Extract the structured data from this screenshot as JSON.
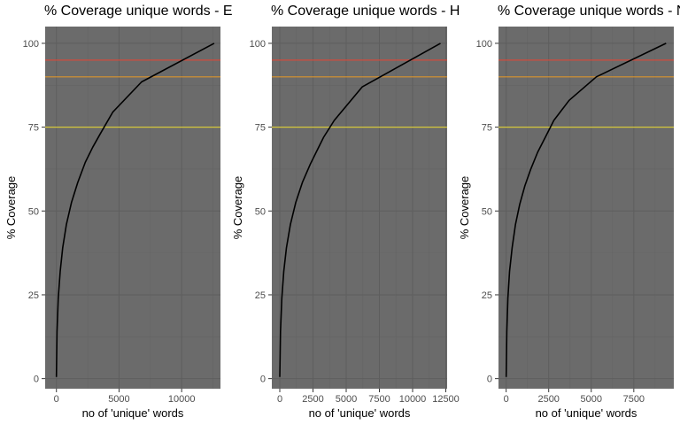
{
  "chart_data": [
    {
      "type": "line",
      "title": "% Coverage unique words - E",
      "xlabel": "no of 'unique' words",
      "ylabel": "% Coverage",
      "xlim": [
        -900,
        13100
      ],
      "ylim": [
        -3,
        105
      ],
      "x_ticks": [
        0,
        5000,
        10000
      ],
      "x_tick_labels": [
        "0",
        "5000",
        "10000"
      ],
      "y_ticks": [
        0,
        25,
        50,
        75,
        100
      ],
      "y_tick_labels": [
        "0",
        "25",
        "50",
        "75",
        "100"
      ],
      "background": "#6b6b6b",
      "grid": true,
      "series": [
        {
          "color": "#000000",
          "x": [
            1,
            50,
            150,
            300,
            500,
            800,
            1200,
            1700,
            2300,
            2900,
            3500,
            4500,
            6800,
            12600
          ],
          "y": [
            0.5,
            14,
            24,
            32,
            39,
            46,
            52.5,
            58.5,
            64.5,
            69,
            73,
            79.5,
            88.5,
            100
          ]
        }
      ],
      "hlines": [
        {
          "y": 95,
          "color": "#d24b3c"
        },
        {
          "y": 90,
          "color": "#d9932c"
        },
        {
          "y": 75,
          "color": "#d6c83c"
        }
      ]
    },
    {
      "type": "line",
      "title": "% Coverage unique words - H",
      "xlabel": "no of 'unique' words",
      "ylabel": "% Coverage",
      "xlim": [
        -600,
        12600
      ],
      "ylim": [
        -3,
        105
      ],
      "x_ticks": [
        0,
        2500,
        5000,
        7500,
        10000,
        12500
      ],
      "x_tick_labels": [
        "0",
        "2500",
        "5000",
        "7500",
        "10000",
        "12500"
      ],
      "y_ticks": [
        0,
        25,
        50,
        75,
        100
      ],
      "y_tick_labels": [
        "0",
        "25",
        "50",
        "75",
        "100"
      ],
      "background": "#6b6b6b",
      "grid": true,
      "series": [
        {
          "color": "#000000",
          "x": [
            1,
            50,
            150,
            300,
            500,
            800,
            1200,
            1700,
            2300,
            2800,
            3300,
            4100,
            6200,
            12100
          ],
          "y": [
            0.5,
            14,
            24,
            32,
            39,
            46,
            52.5,
            58.5,
            64,
            68,
            72,
            77,
            87,
            100
          ]
        }
      ],
      "hlines": [
        {
          "y": 95,
          "color": "#d24b3c"
        },
        {
          "y": 90,
          "color": "#d9932c"
        },
        {
          "y": 75,
          "color": "#d6c83c"
        }
      ]
    },
    {
      "type": "line",
      "title": "% Coverage unique words - N",
      "xlabel": "no of 'unique' words",
      "ylabel": "% Coverage",
      "xlim": [
        -450,
        9850
      ],
      "ylim": [
        -3,
        105
      ],
      "x_ticks": [
        0,
        2500,
        5000,
        7500
      ],
      "x_tick_labels": [
        "0",
        "2500",
        "5000",
        "7500"
      ],
      "y_ticks": [
        0,
        25,
        50,
        75,
        100
      ],
      "y_tick_labels": [
        "0",
        "25",
        "50",
        "75",
        "100"
      ],
      "background": "#6b6b6b",
      "grid": true,
      "series": [
        {
          "color": "#000000",
          "x": [
            1,
            40,
            100,
            200,
            350,
            550,
            800,
            1100,
            1450,
            1850,
            2300,
            2800,
            3700,
            5300,
            9400
          ],
          "y": [
            0.5,
            14,
            24,
            32,
            39,
            46,
            52,
            57.5,
            62.5,
            67.5,
            72,
            77,
            83,
            90,
            100
          ]
        }
      ],
      "hlines": [
        {
          "y": 95,
          "color": "#d24b3c"
        },
        {
          "y": 90,
          "color": "#d9932c"
        },
        {
          "y": 75,
          "color": "#d6c83c"
        }
      ]
    }
  ]
}
